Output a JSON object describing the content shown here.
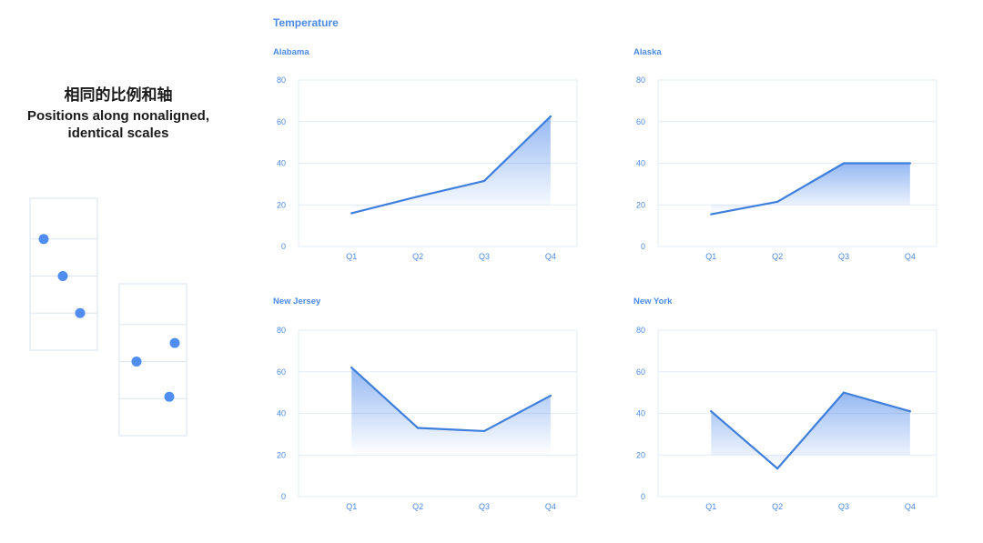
{
  "left": {
    "title_zh": "相同的比例和轴",
    "title_en": "Positions along nonaligned, identical scales"
  },
  "colors": {
    "accent": "#4a8ae8",
    "line": "#3f7fdc",
    "grid": "#e3ecf7",
    "dot": "#4f8ef0"
  },
  "chart_data": [
    {
      "type": "area",
      "group_title": "Temperature",
      "title": "Alabama",
      "categories": [
        "Q1",
        "Q2",
        "Q3",
        "Q4"
      ],
      "values": [
        16,
        24,
        31.5,
        62.5
      ],
      "ylim": [
        0,
        80
      ],
      "yticks": [
        0,
        20,
        40,
        60,
        80
      ],
      "grid": true
    },
    {
      "type": "area",
      "title": "Alaska",
      "categories": [
        "Q1",
        "Q2",
        "Q3",
        "Q4"
      ],
      "values": [
        15.5,
        21.5,
        40,
        40
      ],
      "ylim": [
        0,
        80
      ],
      "yticks": [
        0,
        20,
        40,
        60,
        80
      ],
      "grid": true
    },
    {
      "type": "area",
      "title": "New Jersey",
      "categories": [
        "Q1",
        "Q2",
        "Q3",
        "Q4"
      ],
      "values": [
        62,
        33,
        31.5,
        48.5
      ],
      "ylim": [
        0,
        80
      ],
      "yticks": [
        0,
        20,
        40,
        60,
        80
      ],
      "grid": true
    },
    {
      "type": "area",
      "title": "New York",
      "categories": [
        "Q1",
        "Q2",
        "Q3",
        "Q4"
      ],
      "values": [
        41,
        13.5,
        50,
        41
      ],
      "ylim": [
        0,
        80
      ],
      "yticks": [
        0,
        20,
        40,
        60,
        80
      ],
      "grid": true
    },
    {
      "type": "scatter",
      "illustration": "left-panel",
      "values": [
        3,
        2,
        1
      ]
    },
    {
      "type": "scatter",
      "illustration": "right-panel",
      "values": [
        2,
        2.5,
        1.05
      ]
    }
  ]
}
